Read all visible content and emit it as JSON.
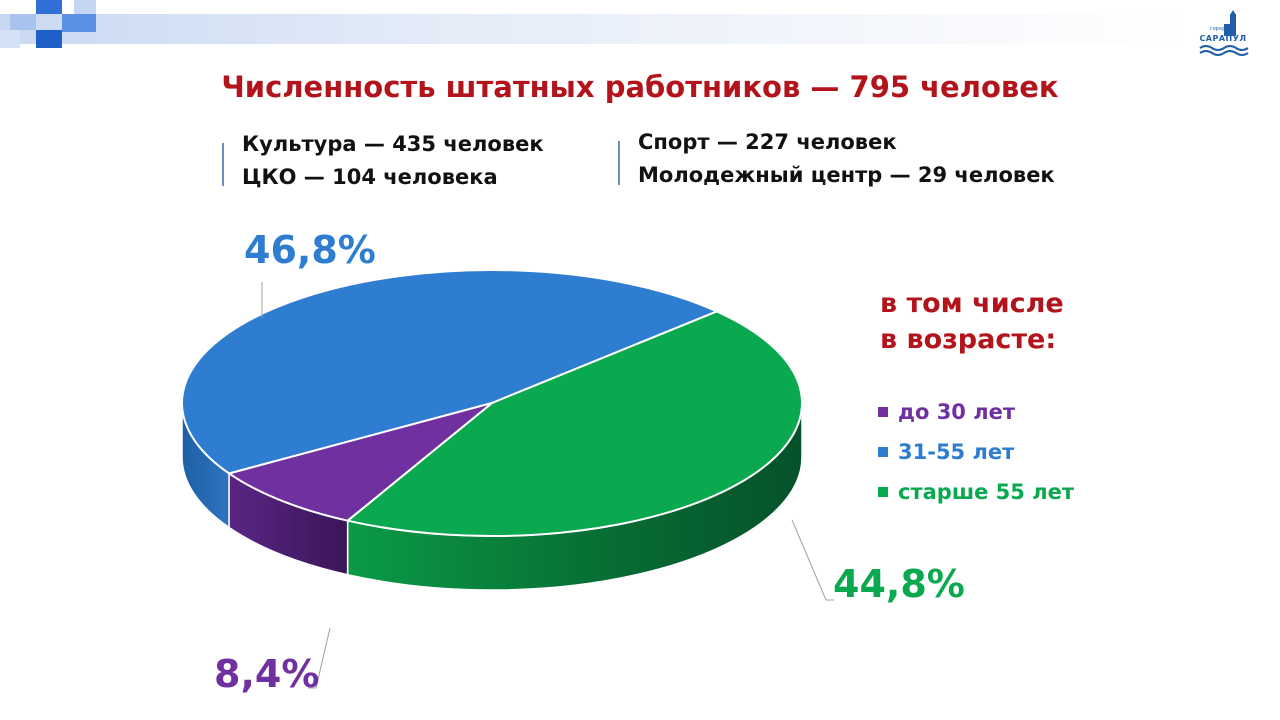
{
  "slide": {
    "title": "Численность штатных работников — 795 человек",
    "info_left": [
      "Культура — 435 человек",
      "ЦКО — 104 человека"
    ],
    "info_right": [
      "Спорт — 227 человек",
      "Молодежный центр — 29 человек"
    ],
    "subtitle": [
      "в том числе",
      "в возрасте:"
    ],
    "logo_text": "САРАПУЛ",
    "logo_small_text": "город"
  },
  "colors": {
    "title": "#b3141c",
    "purple": "#7030a0",
    "blue": "#2f7dd1",
    "green": "#0aa84f"
  },
  "chart_data": {
    "type": "pie",
    "style": "3d",
    "categories": [
      "до 30 лет",
      "31-55 лет",
      "старше 55 лет"
    ],
    "values": [
      8.4,
      46.8,
      44.8
    ],
    "labels": [
      "8,4%",
      "46,8%",
      "44,8%"
    ],
    "colors": [
      "#7030a0",
      "#2f7dd1",
      "#0aa84f"
    ],
    "legend_position": "right"
  }
}
